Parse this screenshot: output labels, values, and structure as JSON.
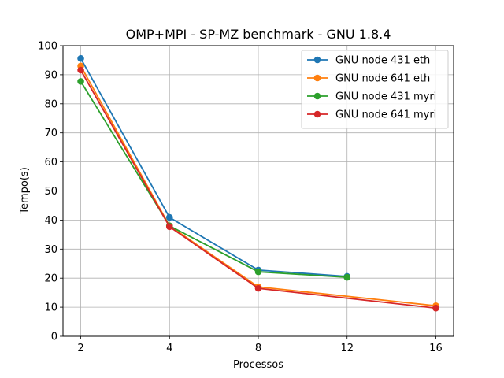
{
  "chart_data": {
    "type": "line",
    "title": "OMP+MPI - SP-MZ benchmark - GNU 1.8.4",
    "xlabel": "Processos",
    "ylabel": "Tempo(s)",
    "xlim": [
      1.3,
      16.7
    ],
    "ylim": [
      0,
      100
    ],
    "xticks": [
      2,
      4,
      8,
      12,
      16
    ],
    "yticks": [
      0,
      10,
      20,
      30,
      40,
      50,
      60,
      70,
      80,
      90,
      100
    ],
    "grid": true,
    "legend_position": "top-right",
    "x_spacing": "categorical",
    "series": [
      {
        "name": "GNU node 431 eth",
        "color": "#1f77b4",
        "x": [
          2,
          4,
          8,
          12
        ],
        "y": [
          95.6,
          40.9,
          22.8,
          20.6
        ]
      },
      {
        "name": "GNU node 641 eth",
        "color": "#ff7f0e",
        "x": [
          2,
          4,
          8,
          16
        ],
        "y": [
          93.0,
          38.0,
          17.0,
          10.5
        ]
      },
      {
        "name": "GNU node 431 myri",
        "color": "#2ca02c",
        "x": [
          2,
          4,
          8,
          12
        ],
        "y": [
          87.7,
          38.0,
          22.2,
          20.3
        ]
      },
      {
        "name": "GNU node 641 myri",
        "color": "#d62728",
        "x": [
          2,
          4,
          8,
          16
        ],
        "y": [
          91.6,
          37.7,
          16.5,
          9.7
        ]
      }
    ]
  }
}
